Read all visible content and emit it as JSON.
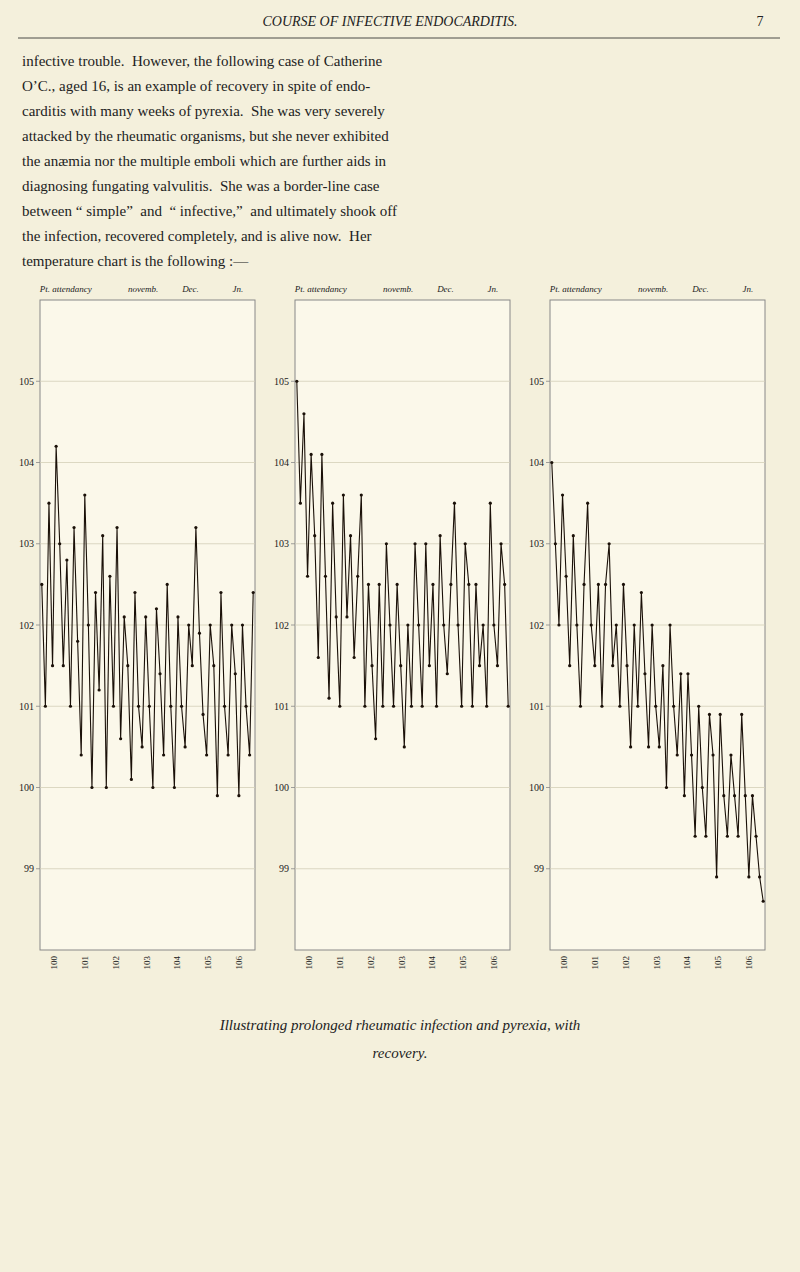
{
  "header": "COURSE OF INFECTIVE ENDOCARDITIS.",
  "page_number": "7",
  "body_text": [
    "infective trouble.  However, the following case of Catherine",
    "O’C., aged 16, is an example of recovery in spite of endo-",
    "carditis with many weeks of pyrexia.  She was very severely",
    "attacked by the rheumatic organisms, but she never exhibited",
    "the anæmia nor the multiple emboli which are further aids in",
    "diagnosing fungating valvulitis.  She was a border-line case",
    "between “ simple”  and  “ infective,”  and ultimately shook off",
    "the infection, recovered completely, and is alive now.  Her",
    "temperature chart is the following :—"
  ],
  "caption": [
    "Illustrating prolonged rheumatic infection and pyrexia, with",
    "recovery."
  ],
  "chart_data": [
    {
      "type": "line",
      "color": "#1a1008",
      "marker": "circle",
      "grid": true,
      "tick_labels": "y",
      "ylim": [
        98,
        106
      ],
      "yticks": [
        99,
        100,
        101,
        102,
        103,
        104,
        105
      ],
      "annotations": {
        "top": [
          "Pt. attendancy",
          "novemb.",
          "Dec.",
          "Jn."
        ],
        "bottom": [
          "100",
          "101",
          "102",
          "103",
          "104",
          "105",
          "106"
        ]
      },
      "values": [
        102.5,
        101.0,
        103.5,
        101.5,
        104.2,
        103.0,
        101.5,
        102.8,
        101.0,
        103.2,
        101.8,
        100.4,
        103.6,
        102.0,
        100.0,
        102.4,
        101.2,
        103.1,
        100.0,
        102.6,
        101.0,
        103.2,
        100.6,
        102.1,
        101.5,
        100.1,
        102.4,
        101.0,
        100.5,
        102.1,
        101.0,
        100.0,
        102.2,
        101.4,
        100.4,
        102.5,
        101.0,
        100.0,
        102.1,
        101.0,
        100.5,
        102.0,
        101.5,
        103.2,
        101.9,
        100.9,
        100.4,
        102.0,
        101.5,
        99.9,
        102.4,
        101.0,
        100.4,
        102.0,
        101.4,
        99.9,
        102.0,
        101.0,
        100.4,
        102.4
      ]
    },
    {
      "type": "line",
      "color": "#1a1008",
      "marker": "circle",
      "grid": true,
      "tick_labels": "y",
      "ylim": [
        98,
        106
      ],
      "yticks": [
        99,
        100,
        101,
        102,
        103,
        104,
        105
      ],
      "annotations": {
        "top": [
          "Pt. attendancy",
          "novemb.",
          "Dec.",
          "Jn."
        ],
        "bottom": [
          "100",
          "101",
          "102",
          "103",
          "104",
          "105",
          "106"
        ]
      },
      "values": [
        105.0,
        103.5,
        104.6,
        102.6,
        104.1,
        103.1,
        101.6,
        104.1,
        102.6,
        101.1,
        103.5,
        102.1,
        101.0,
        103.6,
        102.1,
        103.1,
        101.6,
        102.6,
        103.6,
        101.0,
        102.5,
        101.5,
        100.6,
        102.5,
        101.0,
        103.0,
        102.0,
        101.0,
        102.5,
        101.5,
        100.5,
        102.0,
        101.0,
        103.0,
        102.0,
        101.0,
        103.0,
        101.5,
        102.5,
        101.0,
        103.1,
        102.0,
        101.4,
        102.5,
        103.5,
        102.0,
        101.0,
        103.0,
        102.5,
        101.0,
        102.5,
        101.5,
        102.0,
        101.0,
        103.5,
        102.0,
        101.5,
        103.0,
        102.5,
        101.0
      ]
    },
    {
      "type": "line",
      "color": "#1a1008",
      "marker": "circle",
      "grid": true,
      "tick_labels": "y",
      "ylim": [
        98,
        106
      ],
      "yticks": [
        99,
        100,
        101,
        102,
        103,
        104,
        105
      ],
      "annotations": {
        "top": [
          "Pt. attendancy",
          "novemb.",
          "Dec.",
          "Jn."
        ],
        "bottom": [
          "100",
          "101",
          "102",
          "103",
          "104",
          "105",
          "106"
        ]
      },
      "values": [
        104.0,
        103.0,
        102.0,
        103.6,
        102.6,
        101.5,
        103.1,
        102.0,
        101.0,
        102.5,
        103.5,
        102.0,
        101.5,
        102.5,
        101.0,
        102.5,
        103.0,
        101.5,
        102.0,
        101.0,
        102.5,
        101.5,
        100.5,
        102.0,
        101.0,
        102.4,
        101.4,
        100.5,
        102.0,
        101.0,
        100.5,
        101.5,
        100.0,
        102.0,
        101.0,
        100.4,
        101.4,
        99.9,
        101.4,
        100.4,
        99.4,
        101.0,
        100.0,
        99.4,
        100.9,
        100.4,
        98.9,
        100.9,
        99.9,
        99.4,
        100.4,
        99.9,
        99.4,
        100.9,
        99.9,
        98.9,
        99.9,
        99.4,
        98.9,
        98.6
      ]
    }
  ]
}
